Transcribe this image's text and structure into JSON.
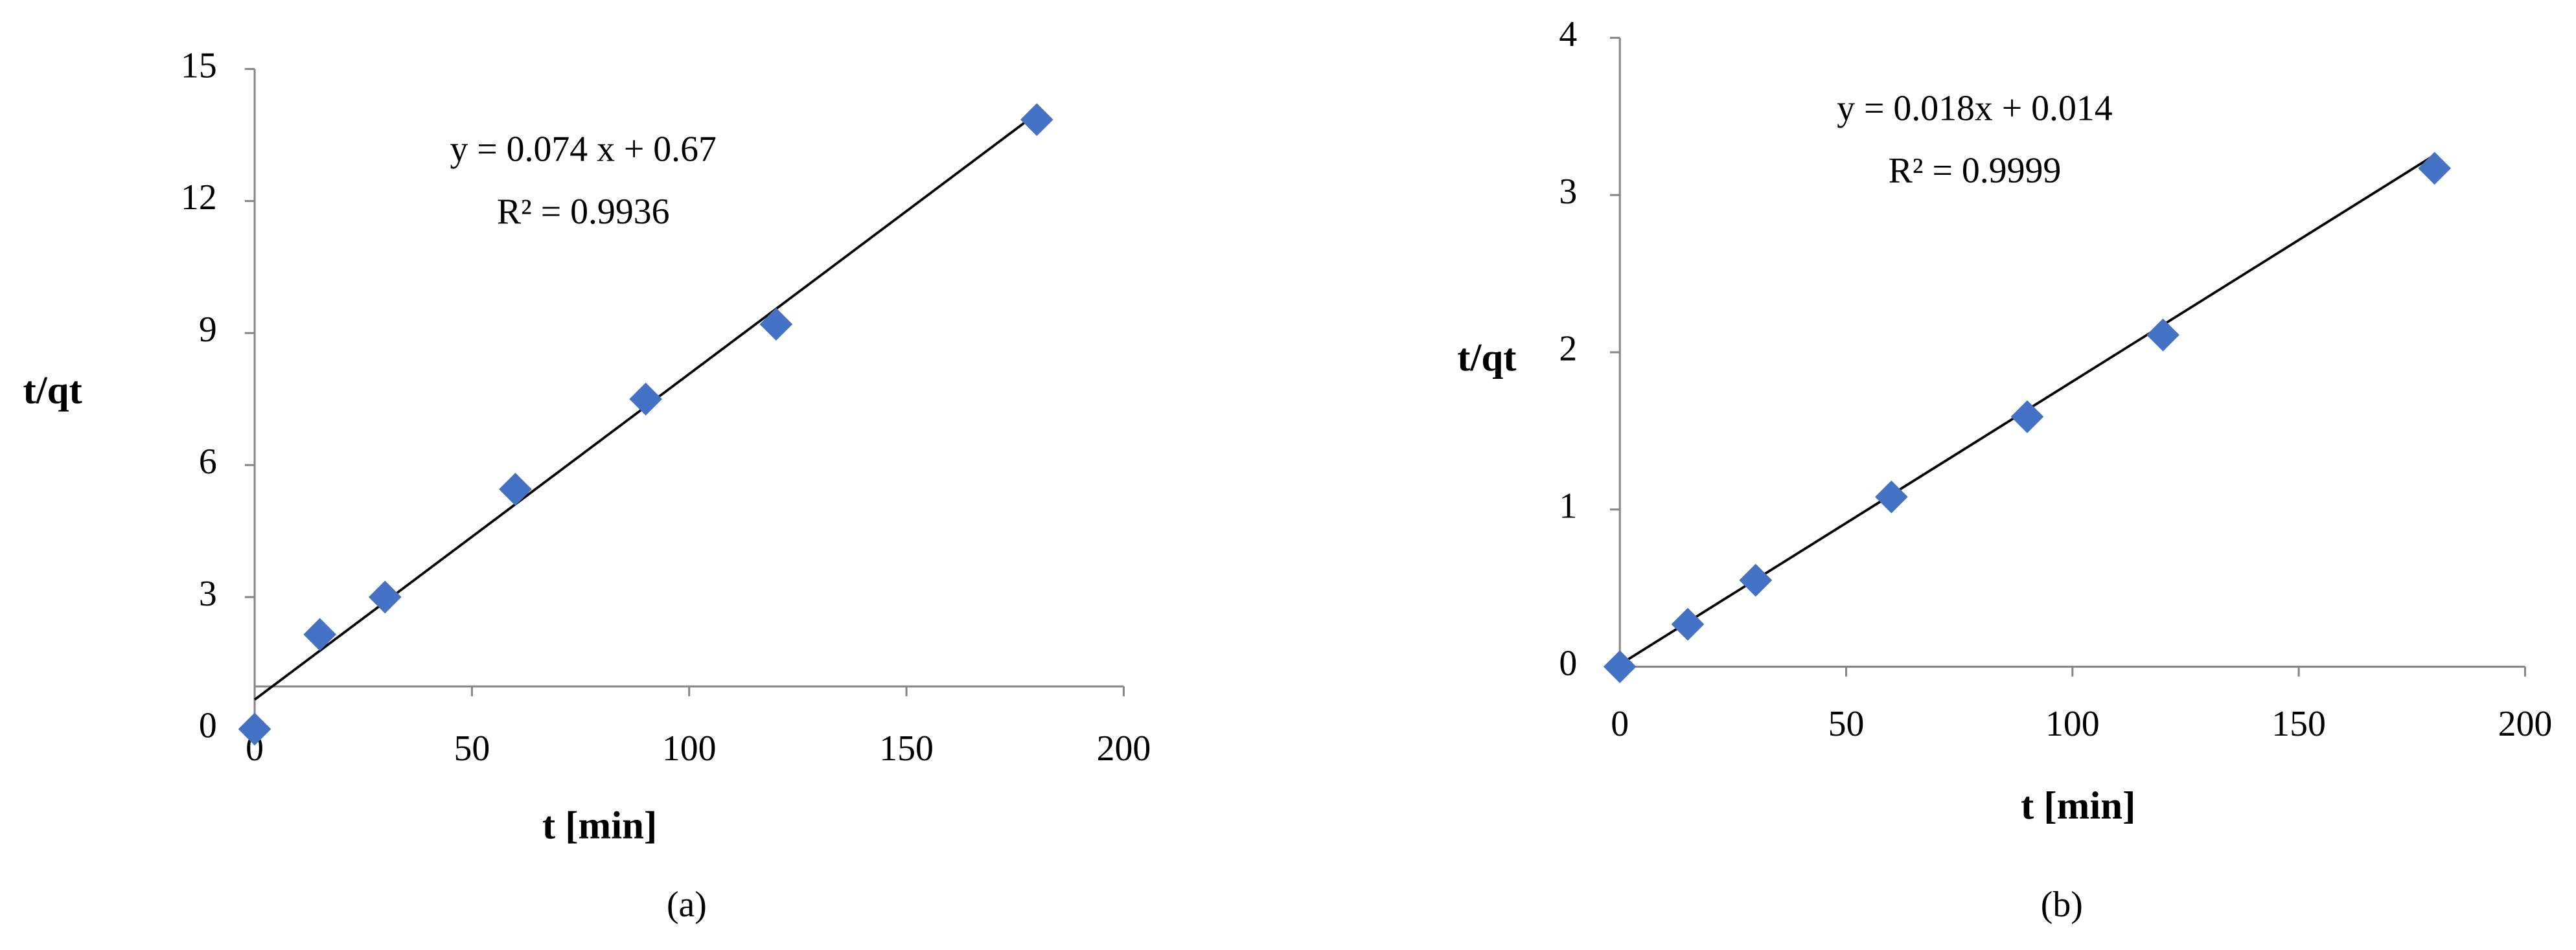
{
  "chart_data": [
    {
      "type": "scatter",
      "x_label": "t [min]",
      "y_label": "t/qt",
      "caption": "(a)",
      "annotations": [
        "y = 0.074 x + 0.67",
        "R² = 0.9936"
      ],
      "x": [
        0,
        15,
        30,
        60,
        90,
        120,
        180
      ],
      "values": [
        0,
        2.15,
        3.0,
        5.45,
        7.5,
        9.2,
        13.85
      ],
      "color": "#4472c4",
      "trendline": {
        "slope": 0.074,
        "intercept": 0.67
      },
      "xlim": [
        0,
        200
      ],
      "xticks": [
        0,
        50,
        100,
        150,
        200
      ],
      "ylim": [
        0,
        15
      ],
      "yticks": [
        0,
        3,
        6,
        9,
        12,
        15
      ]
    },
    {
      "type": "scatter",
      "x_label": "t [min]",
      "y_label": "t/qt",
      "caption": "(b)",
      "annotations": [
        "y = 0.018x + 0.014",
        "R² = 0.9999"
      ],
      "x": [
        0,
        15,
        30,
        60,
        90,
        120,
        180
      ],
      "values": [
        0,
        0.27,
        0.55,
        1.08,
        1.59,
        2.11,
        3.17
      ],
      "color": "#4472c4",
      "trendline": {
        "slope": 0.018,
        "intercept": 0.014
      },
      "xlim": [
        0,
        200
      ],
      "xticks": [
        0,
        50,
        100,
        150,
        200
      ],
      "ylim": [
        0,
        4
      ],
      "yticks": [
        0,
        1,
        2,
        3,
        4
      ]
    }
  ]
}
